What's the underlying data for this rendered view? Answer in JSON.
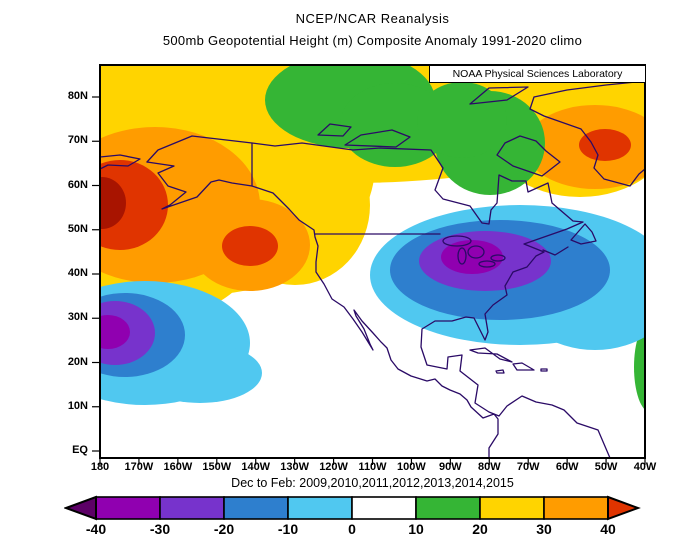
{
  "titles": {
    "line1": "NCEP/NCAR Reanalysis",
    "line2": "500mb Geopotential Height (m) Composite Anomaly 1991-2020 climo"
  },
  "branding": {
    "label": "NOAA Physical Sciences Laboratory"
  },
  "caption": "Dec to Feb: 2009,2010,2011,2012,2013,2014,2015",
  "axes": {
    "lat_labels": [
      "80N",
      "70N",
      "60N",
      "50N",
      "40N",
      "30N",
      "20N",
      "10N",
      "EQ"
    ],
    "lon_labels": [
      "180",
      "170W",
      "160W",
      "150W",
      "140W",
      "130W",
      "120W",
      "110W",
      "100W",
      "90W",
      "80W",
      "70W",
      "60W",
      "50W",
      "40W"
    ]
  },
  "colorbar": {
    "labels": [
      "-40",
      "-30",
      "-20",
      "-10",
      "0",
      "10",
      "20",
      "30",
      "40"
    ],
    "segment_colors": [
      "#9000b0",
      "#7733cc",
      "#2e7fce",
      "#50c8f0",
      "#ffffff",
      "#35b535",
      "#ffd400",
      "#ff9c00"
    ],
    "left_arrow_color": "#5c0066",
    "right_arrow_color": "#e03400"
  },
  "palette": {
    "yellow": "#ffd400",
    "orange": "#ff9c00",
    "red": "#e03400",
    "dark_red": "#a81400",
    "green": "#35b535",
    "cyan": "#50c8f0",
    "blue": "#2e7fce",
    "violet": "#7733cc",
    "magenta": "#9000b0",
    "white": "#ffffff",
    "coast": "#2a0a66"
  },
  "chart_data": {
    "type": "heatmap",
    "title": "NCEP/NCAR Reanalysis",
    "subtitle": "500mb Geopotential Height (m) Composite Anomaly 1991-2020 climo",
    "composite_period": "Dec to Feb: 2009,2010,2011,2012,2013,2014,2015",
    "variable": "500mb geopotential height composite anomaly",
    "units": "m",
    "climatology": "1991-2020",
    "source_label": "NOAA Physical Sciences Laboratory",
    "lon_range": [
      "180",
      "40W"
    ],
    "lat_range": [
      "EQ",
      "~87N"
    ],
    "contour_interval": 10,
    "colorbar_ticks": [
      -40,
      -30,
      -20,
      -10,
      0,
      10,
      20,
      30,
      40
    ],
    "colorbar_extend": "both",
    "anomaly_centers": [
      {
        "region": "Bering Sea / far western Gulf of Alaska",
        "approx_position": "55N 178W",
        "sign": "positive",
        "peak_anomaly_m": 45
      },
      {
        "region": "Northeast Pacific off Pacific Northwest coast",
        "approx_position": "45N 142W",
        "sign": "positive",
        "peak_anomaly_m": 38
      },
      {
        "region": "Greenland / Davis Strait",
        "approx_position": "67N 52W",
        "sign": "positive",
        "peak_anomaly_m": 35
      },
      {
        "region": "Arctic North America band",
        "approx_position": "75N 110W",
        "sign": "weakly positive",
        "peak_anomaly_m": 12
      },
      {
        "region": "Eastern North America / western North Atlantic",
        "approx_position": "41N 77W",
        "sign": "negative",
        "peak_anomaly_m": -38
      },
      {
        "region": "Subtropical central North Pacific",
        "approx_position": "26N 172W",
        "sign": "negative",
        "peak_anomaly_m": -36
      },
      {
        "region": "Tropical central Pacific tongue",
        "approx_position": "17N 150W",
        "sign": "negative",
        "peak_anomaly_m": -8
      },
      {
        "region": "Eastern Atlantic right-edge sliver",
        "approx_position": "22N 40W",
        "sign": "positive",
        "peak_anomaly_m": 12
      }
    ]
  }
}
